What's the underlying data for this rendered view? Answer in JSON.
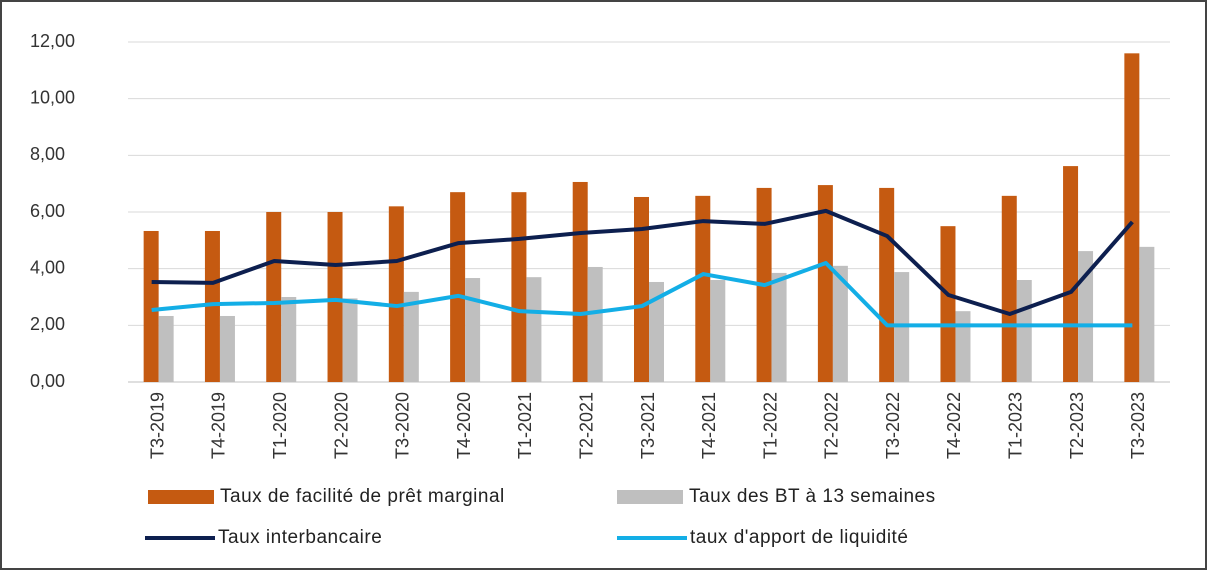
{
  "chart_data": {
    "type": "bar",
    "categories": [
      "T3-2019",
      "T4-2019",
      "T1-2020",
      "T2-2020",
      "T3-2020",
      "T4-2020",
      "T1-2021",
      "T2-2021",
      "T3-2021",
      "T4-2021",
      "T1-2022",
      "T2-2022",
      "T3-2022",
      "T4-2022",
      "T1-2023",
      "T2-2023",
      "T3-2023"
    ],
    "series": [
      {
        "name": "Taux de facilité de prêt marginal",
        "type": "bar",
        "color": "#c55a11",
        "values": [
          5.33,
          5.33,
          6.0,
          6.0,
          6.2,
          6.7,
          6.7,
          7.06,
          6.53,
          6.57,
          6.85,
          6.95,
          6.85,
          5.5,
          6.57,
          7.62,
          11.6
        ]
      },
      {
        "name": "Taux des BT à 13 semaines",
        "type": "bar",
        "color": "#bfbfbf",
        "values": [
          2.33,
          2.33,
          3.0,
          2.95,
          3.18,
          3.67,
          3.7,
          4.06,
          3.53,
          3.6,
          3.85,
          4.1,
          3.88,
          2.5,
          3.6,
          4.62,
          4.77
        ]
      },
      {
        "name": "Taux interbancaire",
        "type": "line",
        "color": "#0d1f4f",
        "values": [
          3.53,
          3.5,
          4.27,
          4.13,
          4.27,
          4.9,
          5.05,
          5.26,
          5.4,
          5.68,
          5.58,
          6.04,
          5.15,
          3.07,
          2.4,
          3.18,
          5.65
        ]
      },
      {
        "name": "taux d'apport de liquidité",
        "type": "line",
        "color": "#13aee6",
        "values": [
          2.54,
          2.75,
          2.79,
          2.9,
          2.68,
          3.04,
          2.5,
          2.4,
          2.68,
          3.81,
          3.42,
          4.2,
          2.0,
          2.0,
          2.0,
          2.0,
          2.0
        ]
      }
    ],
    "ylim": [
      0,
      12
    ],
    "yticks": [
      {
        "value": 0,
        "label": "0,00"
      },
      {
        "value": 2,
        "label": "2,00"
      },
      {
        "value": 4,
        "label": "4,00"
      },
      {
        "value": 6,
        "label": "6,00"
      },
      {
        "value": 8,
        "label": "8,00"
      },
      {
        "value": 10,
        "label": "10,00"
      },
      {
        "value": 12,
        "label": "12,00"
      }
    ],
    "grid": true
  }
}
